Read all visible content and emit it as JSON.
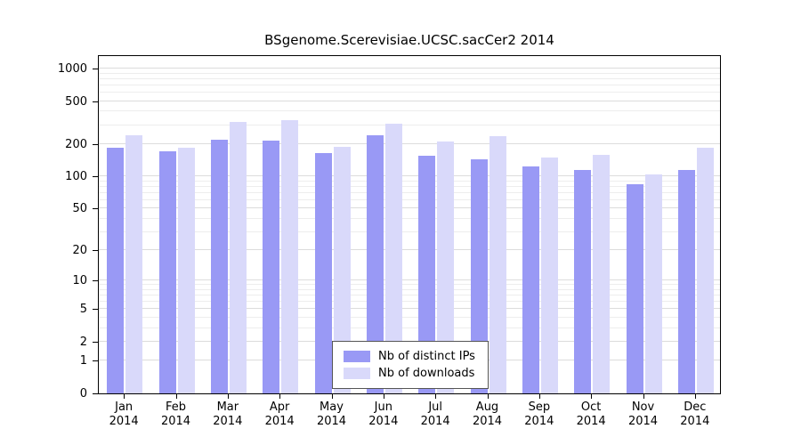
{
  "chart_data": {
    "type": "bar",
    "title": "BSgenome.Scerevisiae.UCSC.sacCer2 2014",
    "categories": [
      "Jan",
      "Feb",
      "Mar",
      "Apr",
      "May",
      "Jun",
      "Jul",
      "Aug",
      "Sep",
      "Oct",
      "Nov",
      "Dec"
    ],
    "year": "2014",
    "xlabel": "",
    "ylabel": "",
    "ylim": [
      0,
      1000
    ],
    "y_scale": "log10(value+1)",
    "y_ticks": [
      0,
      1,
      2,
      5,
      10,
      20,
      50,
      100,
      200,
      500,
      1000
    ],
    "y_minor_gridlines": [
      3,
      4,
      6,
      7,
      8,
      9,
      30,
      40,
      60,
      70,
      80,
      90,
      300,
      400,
      600,
      700,
      800,
      900
    ],
    "grid": true,
    "legend_position": "bottom-center",
    "series": [
      {
        "name": "Nb of distinct IPs",
        "color": "#9999f5",
        "values": [
          185,
          170,
          220,
          215,
          165,
          240,
          155,
          145,
          125,
          115,
          85,
          115
        ]
      },
      {
        "name": "Nb of downloads",
        "color": "#d9d9fa",
        "values": [
          240,
          185,
          320,
          330,
          190,
          310,
          210,
          235,
          150,
          160,
          105,
          185
        ]
      }
    ],
    "colors": {
      "axis": "#000000",
      "grid_major": "#dcdcdc",
      "grid_minor": "#ededed",
      "background": "#ffffff"
    }
  }
}
